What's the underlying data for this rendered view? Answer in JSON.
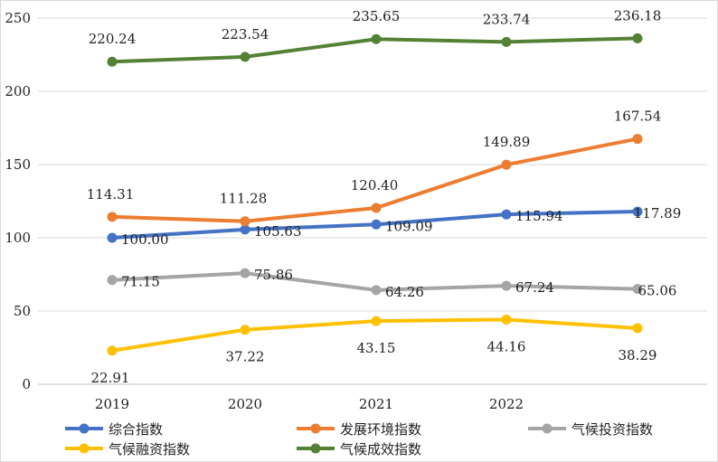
{
  "chart_data": {
    "type": "line",
    "title": "",
    "xlabel": "",
    "ylabel": "",
    "categories": [
      "2019",
      "2020",
      "2021",
      "2022",
      ""
    ],
    "ylim": [
      0,
      250
    ],
    "yticks": [
      0,
      50,
      100,
      150,
      200,
      250
    ],
    "grid": true,
    "legend_position": "bottom",
    "series": [
      {
        "name": "综合指数",
        "color": "#4472C4",
        "values": [
          100.0,
          105.63,
          109.09,
          115.94,
          117.89
        ],
        "labels": [
          "100.00",
          "105.63",
          "109.09",
          "115.94",
          "117.89"
        ]
      },
      {
        "name": "发展环境指数",
        "color": "#ED7D31",
        "values": [
          114.31,
          111.28,
          120.4,
          149.89,
          167.54
        ],
        "labels": [
          "114.31",
          "111.28",
          "120.40",
          "149.89",
          "167.54"
        ]
      },
      {
        "name": "气候投资指数",
        "color": "#A5A5A5",
        "values": [
          71.15,
          75.86,
          64.26,
          67.24,
          65.06
        ],
        "labels": [
          "71.15",
          "75.86",
          "64.26",
          "67.24",
          "65.06"
        ]
      },
      {
        "name": "气候融资指数",
        "color": "#FFC000",
        "values": [
          22.91,
          37.22,
          43.15,
          44.16,
          38.29
        ],
        "labels": [
          "22.91",
          "37.22",
          "43.15",
          "44.16",
          "38.29"
        ]
      },
      {
        "name": "气候成效指数",
        "color": "#548235",
        "values": [
          220.24,
          223.54,
          235.65,
          233.74,
          236.18
        ],
        "labels": [
          "220.24",
          "223.54",
          "235.65",
          "233.74",
          "236.18"
        ]
      }
    ]
  }
}
